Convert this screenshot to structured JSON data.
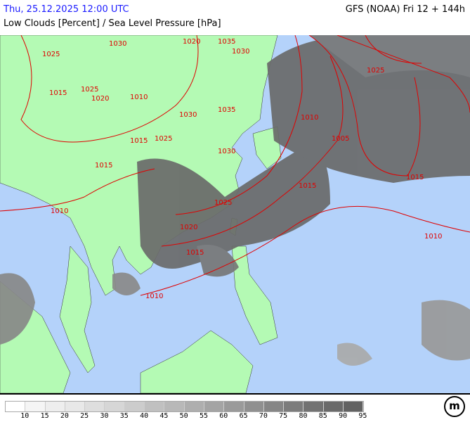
{
  "header": {
    "valid_time": "Thu, 25.12.2025 12:00 UTC",
    "model": "GFS (NOAA) Fri 12 + 144h",
    "parameter": "Low Clouds [Percent] / Sea Level Pressure [hPa]"
  },
  "map": {
    "colors": {
      "sea": "#b4d2fa",
      "land": "#b4fab4",
      "isobar": "#e00000",
      "cloud_dark": "#646464"
    },
    "isobar_labels": [
      "1025",
      "1030",
      "1035",
      "1030",
      "1020",
      "1025",
      "1015",
      "1020",
      "1010",
      "1030",
      "1035",
      "1015",
      "1025",
      "1030",
      "1010",
      "1005",
      "1025",
      "1015",
      "1015",
      "1020",
      "1025",
      "1015",
      "1010",
      "1010",
      "1010",
      "1015"
    ]
  },
  "legend": {
    "values": [
      "10",
      "15",
      "20",
      "25",
      "30",
      "35",
      "40",
      "45",
      "50",
      "55",
      "60",
      "65",
      "70",
      "75",
      "80",
      "85",
      "90",
      "95"
    ],
    "colors": [
      "#ffffff",
      "#f5f5f5",
      "#eeeeee",
      "#e8e8e8",
      "#dedede",
      "#d6d6d6",
      "#cccccc",
      "#c0c0c0",
      "#b8b8b8",
      "#aeaeae",
      "#a4a4a4",
      "#9a9a9a",
      "#909090",
      "#868686",
      "#7c7c7c",
      "#727272",
      "#6a6a6a",
      "#626262"
    ]
  },
  "logo": {
    "text": "m"
  }
}
